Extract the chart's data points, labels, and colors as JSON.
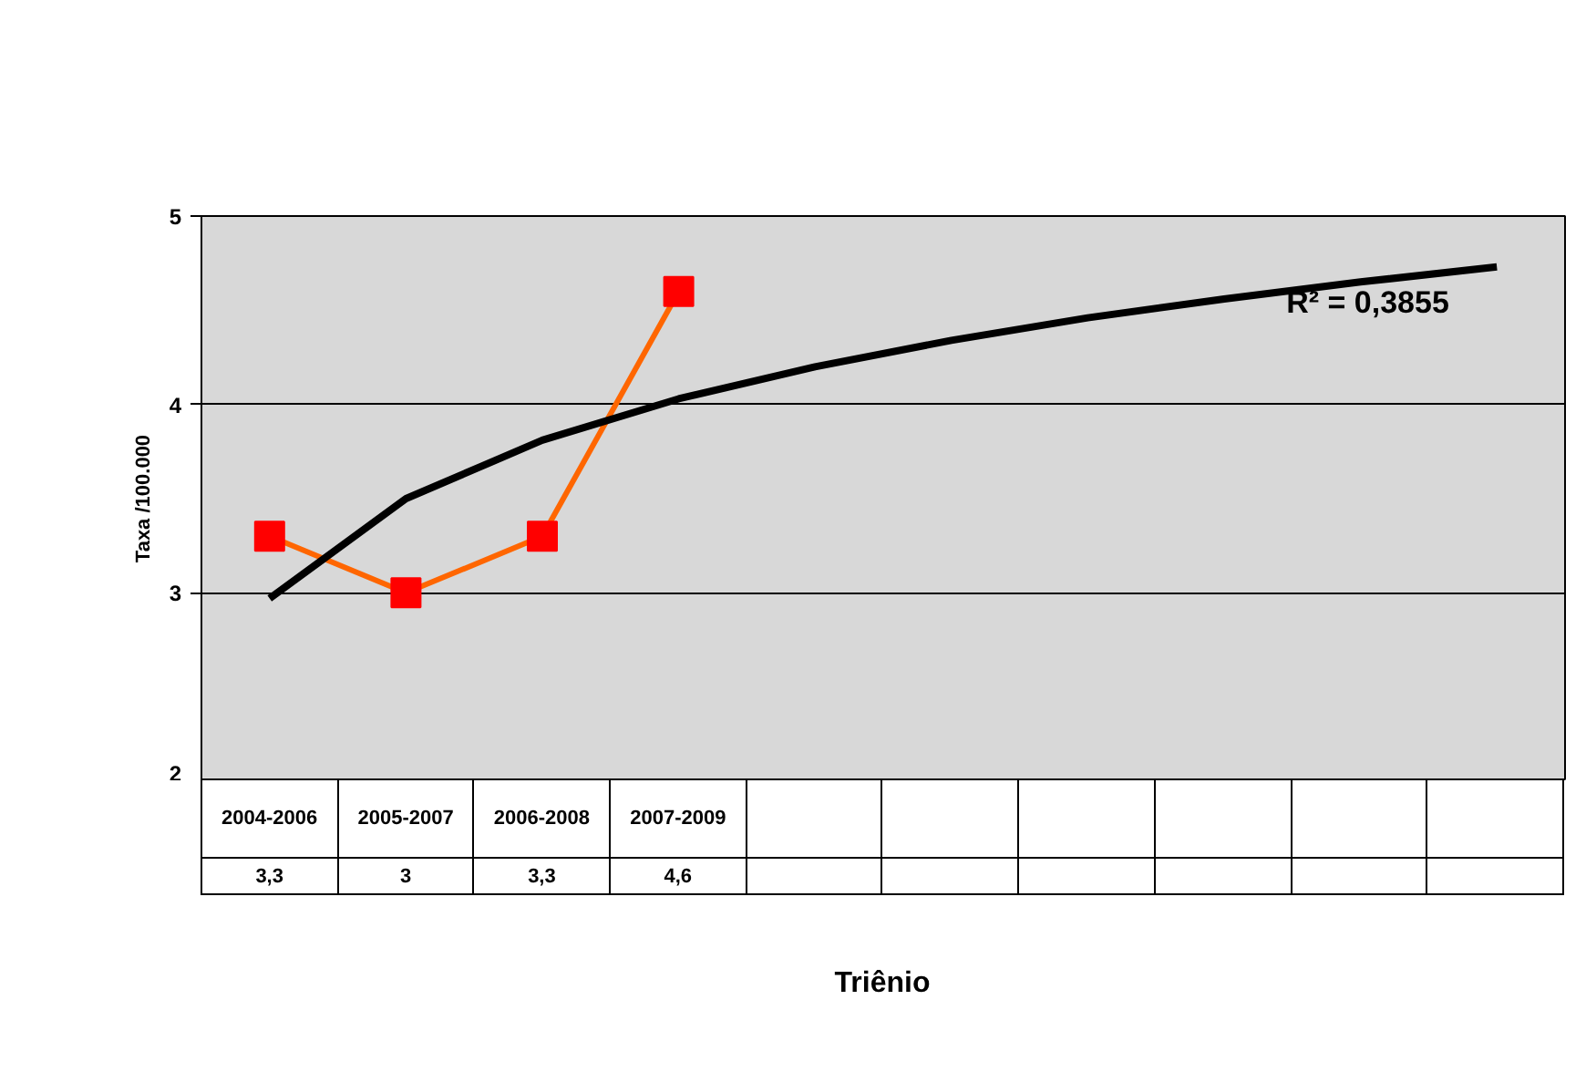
{
  "chart_data": {
    "type": "line",
    "xlabel": "Triênio",
    "ylabel": "Taxa /100.000",
    "categories": [
      "2004-2006",
      "2005-2007",
      "2006-2008",
      "2007-2009",
      null,
      null,
      null,
      null,
      null,
      null
    ],
    "series": [
      {
        "color": "#ff6600",
        "colors": [
          "#ff0000",
          "#ff0000",
          "#ff0000",
          "#ff0000",
          null,
          null,
          null,
          null,
          null,
          null
        ],
        "marker": "square",
        "values": [
          3.3,
          3,
          3.3,
          4.6,
          null,
          null,
          null,
          null,
          null,
          null
        ],
        "value_labels": [
          "3,3",
          "3",
          "3,3",
          "4,6",
          null,
          null,
          null,
          null,
          null,
          null
        ]
      },
      {
        "color": "#000000",
        "marker": "none",
        "values": [
          2.97,
          3.5,
          3.81,
          4.03,
          4.2,
          4.34,
          4.46,
          4.56,
          4.65,
          4.73
        ]
      }
    ],
    "ylim": [
      2,
      5
    ],
    "yticks": [
      2,
      3,
      4,
      5
    ],
    "grid": "y",
    "tick_labels": "y",
    "annotations": [
      "R² = 0,3855"
    ]
  }
}
